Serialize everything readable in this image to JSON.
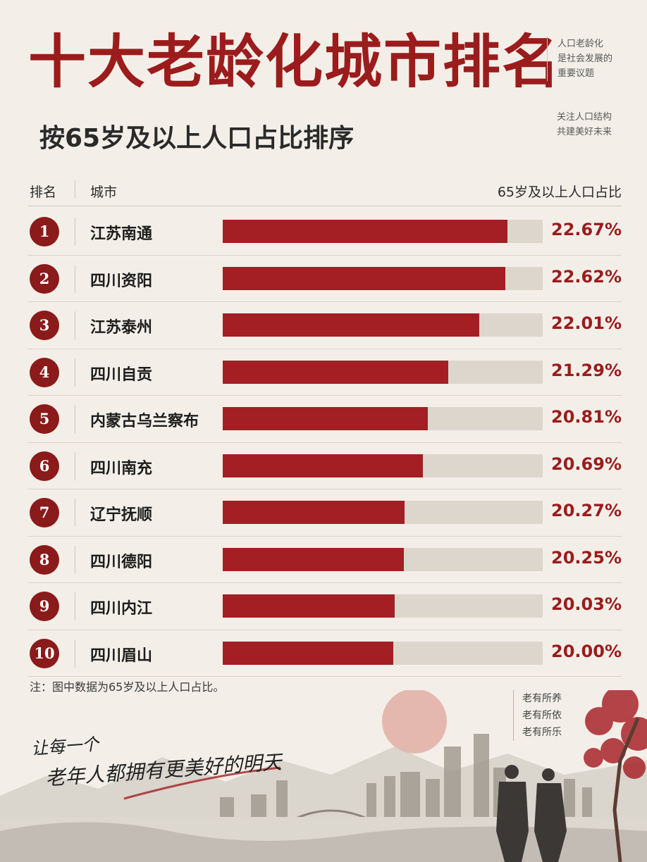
{
  "title": "十大老龄化城市排名",
  "subtitle": "按65岁及以上人口占比排序",
  "side_note_1": [
    "人口老龄化",
    "是社会发展的",
    "重要议题"
  ],
  "side_note_2": [
    "关注人口结构",
    "共建美好未来"
  ],
  "header": {
    "rank": "排名",
    "city": "城市",
    "value": "65岁及以上人口占比"
  },
  "chart_data": {
    "type": "bar",
    "orientation": "horizontal",
    "title": "十大老龄化城市排名",
    "subtitle": "按65岁及以上人口占比排序",
    "categories": [
      "江苏南通",
      "四川资阳",
      "江苏泰州",
      "四川自贡",
      "内蒙古乌兰察布",
      "四川南充",
      "辽宁抚顺",
      "四川德阳",
      "四川内江",
      "四川眉山"
    ],
    "ranks": [
      "1",
      "2",
      "3",
      "4",
      "5",
      "6",
      "7",
      "8",
      "9",
      "10"
    ],
    "values": [
      22.67,
      22.62,
      22.01,
      21.29,
      20.81,
      20.69,
      20.27,
      20.25,
      20.03,
      20.0
    ],
    "value_labels": [
      "22.67%",
      "22.62%",
      "22.01%",
      "21.29%",
      "20.81%",
      "20.69%",
      "20.27%",
      "20.25%",
      "20.03%",
      "20.00%"
    ],
    "xlim": [
      16,
      23.5
    ],
    "bar_color": "#a31f24",
    "track_color": "#dcd6cd"
  },
  "note": "注：图中数据为65岁及以上人口占比。",
  "slogan": [
    "让每一个",
    "老年人都拥有更美好的明天"
  ],
  "poem": [
    "老有所养",
    "老有所依",
    "老有所乐"
  ],
  "colors": {
    "accent": "#9b1c1c",
    "background": "#f3efe8"
  }
}
